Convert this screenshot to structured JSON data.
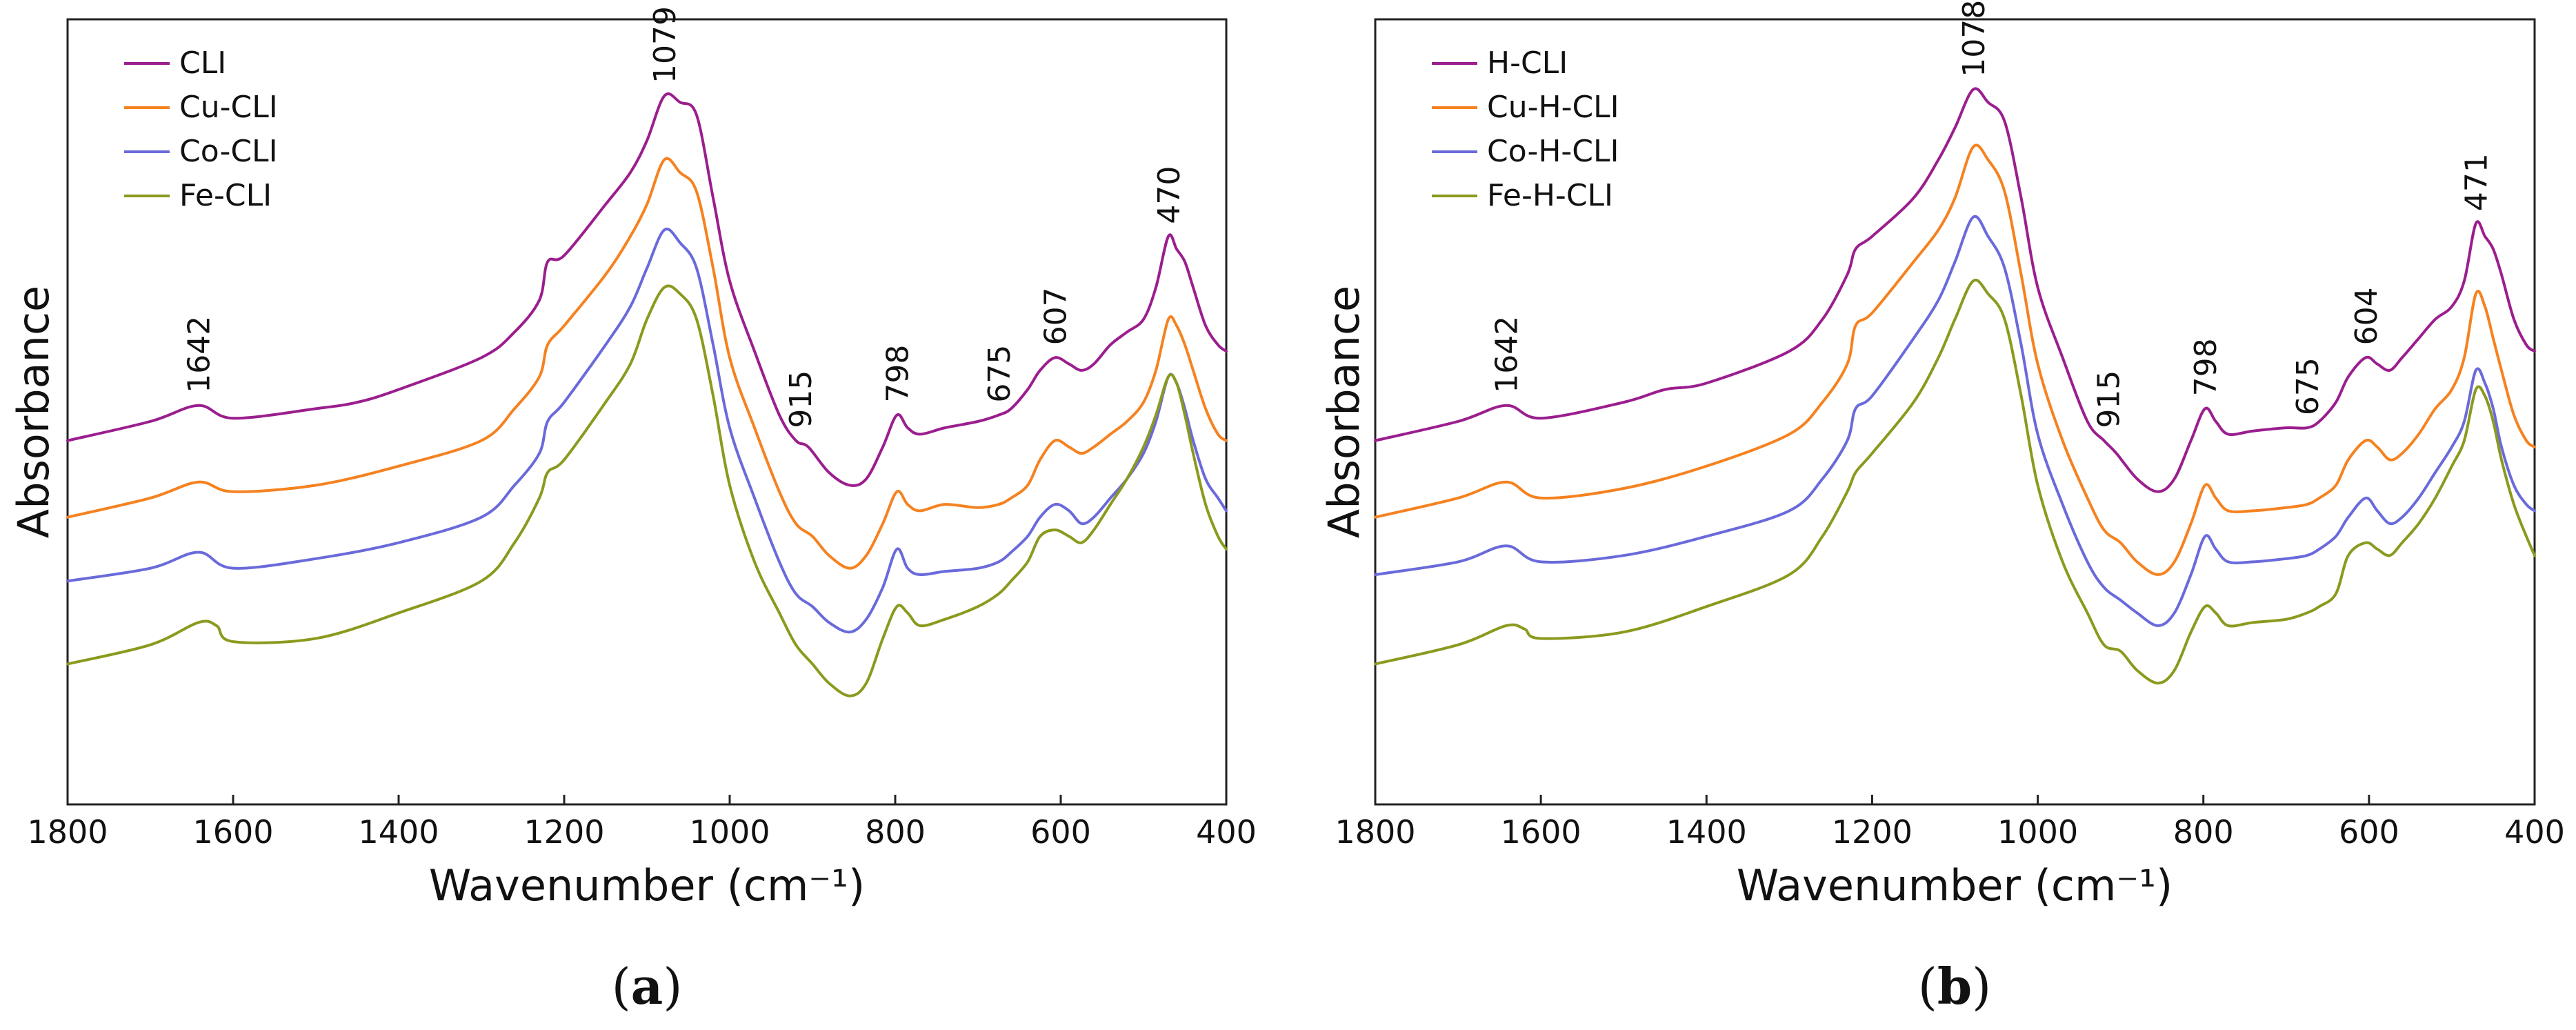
{
  "chart_data": [
    {
      "type": "line",
      "panel_label": "a",
      "xlabel": "Wavenumber (cm⁻¹)",
      "ylabel": "Absorbance",
      "xlim": [
        1800,
        400
      ],
      "ylim": [
        -0.15,
        1.08
      ],
      "x_ticks": [
        1800,
        1600,
        1400,
        1200,
        1000,
        800,
        600,
        400
      ],
      "legend_position": "top-left",
      "series": [
        {
          "name": "CLI",
          "color": "#9B1E8E",
          "x": [
            1800,
            1700,
            1642,
            1600,
            1500,
            1450,
            1400,
            1300,
            1260,
            1230,
            1220,
            1200,
            1150,
            1120,
            1100,
            1079,
            1060,
            1040,
            1020,
            1000,
            970,
            940,
            920,
            905,
            880,
            855,
            835,
            815,
            798,
            785,
            770,
            740,
            700,
            675,
            660,
            640,
            625,
            607,
            590,
            575,
            560,
            540,
            520,
            500,
            485,
            470,
            460,
            450,
            440,
            425,
            410,
            400
          ],
          "y": [
            0.42,
            0.45,
            0.475,
            0.455,
            0.47,
            0.48,
            0.5,
            0.55,
            0.59,
            0.64,
            0.7,
            0.71,
            0.79,
            0.84,
            0.89,
            0.96,
            0.95,
            0.93,
            0.8,
            0.67,
            0.56,
            0.46,
            0.42,
            0.41,
            0.37,
            0.35,
            0.36,
            0.41,
            0.46,
            0.44,
            0.43,
            0.44,
            0.45,
            0.46,
            0.47,
            0.5,
            0.53,
            0.55,
            0.54,
            0.53,
            0.54,
            0.57,
            0.59,
            0.61,
            0.66,
            0.74,
            0.72,
            0.7,
            0.66,
            0.6,
            0.57,
            0.56
          ]
        },
        {
          "name": "Cu-CLI",
          "color": "#F58220",
          "x": [
            1800,
            1700,
            1642,
            1600,
            1500,
            1400,
            1300,
            1260,
            1230,
            1220,
            1200,
            1150,
            1120,
            1100,
            1079,
            1060,
            1040,
            1020,
            1000,
            970,
            940,
            920,
            900,
            880,
            855,
            835,
            815,
            798,
            785,
            770,
            740,
            700,
            675,
            660,
            640,
            625,
            607,
            590,
            575,
            560,
            540,
            520,
            500,
            485,
            470,
            460,
            450,
            440,
            425,
            410,
            400
          ],
          "y": [
            0.3,
            0.33,
            0.355,
            0.34,
            0.35,
            0.38,
            0.42,
            0.47,
            0.52,
            0.57,
            0.6,
            0.68,
            0.74,
            0.79,
            0.86,
            0.84,
            0.81,
            0.69,
            0.55,
            0.44,
            0.34,
            0.29,
            0.27,
            0.24,
            0.22,
            0.24,
            0.29,
            0.34,
            0.32,
            0.31,
            0.32,
            0.315,
            0.32,
            0.33,
            0.35,
            0.39,
            0.42,
            0.41,
            0.4,
            0.41,
            0.43,
            0.45,
            0.48,
            0.53,
            0.61,
            0.6,
            0.57,
            0.53,
            0.47,
            0.43,
            0.42
          ]
        },
        {
          "name": "Co-CLI",
          "color": "#6A6ADB",
          "x": [
            1800,
            1700,
            1642,
            1600,
            1500,
            1400,
            1300,
            1260,
            1230,
            1220,
            1200,
            1150,
            1120,
            1100,
            1079,
            1060,
            1040,
            1020,
            1000,
            970,
            940,
            920,
            900,
            880,
            855,
            835,
            815,
            798,
            785,
            770,
            740,
            700,
            675,
            660,
            640,
            625,
            607,
            590,
            575,
            560,
            540,
            520,
            500,
            485,
            470,
            460,
            450,
            440,
            425,
            410,
            400
          ],
          "y": [
            0.2,
            0.22,
            0.245,
            0.22,
            0.235,
            0.26,
            0.3,
            0.35,
            0.4,
            0.45,
            0.48,
            0.57,
            0.63,
            0.69,
            0.75,
            0.73,
            0.69,
            0.57,
            0.44,
            0.33,
            0.23,
            0.18,
            0.16,
            0.135,
            0.12,
            0.14,
            0.19,
            0.25,
            0.22,
            0.21,
            0.215,
            0.22,
            0.23,
            0.245,
            0.27,
            0.3,
            0.32,
            0.31,
            0.29,
            0.3,
            0.33,
            0.36,
            0.4,
            0.45,
            0.52,
            0.51,
            0.47,
            0.42,
            0.36,
            0.33,
            0.31
          ]
        },
        {
          "name": "Fe-CLI",
          "color": "#8B9A1E",
          "x": [
            1800,
            1700,
            1642,
            1620,
            1600,
            1500,
            1400,
            1300,
            1260,
            1230,
            1220,
            1200,
            1150,
            1120,
            1100,
            1079,
            1060,
            1040,
            1020,
            1000,
            970,
            940,
            920,
            900,
            880,
            855,
            835,
            815,
            798,
            785,
            770,
            740,
            700,
            675,
            660,
            640,
            625,
            607,
            590,
            575,
            560,
            540,
            520,
            500,
            485,
            470,
            460,
            450,
            440,
            425,
            410,
            400
          ],
          "y": [
            0.07,
            0.1,
            0.135,
            0.13,
            0.105,
            0.11,
            0.15,
            0.2,
            0.26,
            0.33,
            0.37,
            0.39,
            0.48,
            0.54,
            0.61,
            0.66,
            0.65,
            0.61,
            0.49,
            0.35,
            0.23,
            0.15,
            0.1,
            0.07,
            0.04,
            0.02,
            0.04,
            0.11,
            0.16,
            0.15,
            0.13,
            0.14,
            0.16,
            0.18,
            0.2,
            0.23,
            0.27,
            0.28,
            0.27,
            0.26,
            0.28,
            0.32,
            0.36,
            0.41,
            0.46,
            0.52,
            0.51,
            0.46,
            0.4,
            0.32,
            0.27,
            0.25
          ]
        }
      ],
      "annotations": [
        {
          "text": "1642",
          "x": 1642,
          "y": 0.475
        },
        {
          "text": "1079",
          "x": 1079,
          "y": 0.96
        },
        {
          "text": "915",
          "x": 915,
          "y": 0.42
        },
        {
          "text": "798",
          "x": 798,
          "y": 0.46
        },
        {
          "text": "675",
          "x": 675,
          "y": 0.46
        },
        {
          "text": "607",
          "x": 607,
          "y": 0.55
        },
        {
          "text": "470",
          "x": 470,
          "y": 0.74
        }
      ]
    },
    {
      "type": "line",
      "panel_label": "b",
      "xlabel": "Wavenumber (cm⁻¹)",
      "ylabel": "Absorbance",
      "xlim": [
        1800,
        400
      ],
      "ylim": [
        -0.15,
        1.08
      ],
      "x_ticks": [
        1800,
        1600,
        1400,
        1200,
        1000,
        800,
        600,
        400
      ],
      "legend_position": "top-left",
      "series": [
        {
          "name": "H-CLI",
          "color": "#9B1E8E",
          "x": [
            1800,
            1700,
            1642,
            1600,
            1500,
            1450,
            1400,
            1300,
            1260,
            1230,
            1220,
            1200,
            1150,
            1120,
            1100,
            1078,
            1060,
            1040,
            1020,
            1000,
            970,
            940,
            920,
            905,
            880,
            855,
            835,
            815,
            798,
            785,
            770,
            740,
            700,
            675,
            660,
            640,
            625,
            604,
            590,
            575,
            560,
            540,
            520,
            500,
            485,
            471,
            460,
            450,
            440,
            425,
            410,
            400
          ],
          "y": [
            0.42,
            0.45,
            0.475,
            0.455,
            0.48,
            0.5,
            0.51,
            0.56,
            0.61,
            0.68,
            0.72,
            0.74,
            0.8,
            0.86,
            0.91,
            0.97,
            0.95,
            0.92,
            0.8,
            0.66,
            0.55,
            0.45,
            0.42,
            0.4,
            0.36,
            0.34,
            0.36,
            0.42,
            0.47,
            0.45,
            0.43,
            0.435,
            0.44,
            0.44,
            0.45,
            0.48,
            0.52,
            0.55,
            0.54,
            0.53,
            0.55,
            0.58,
            0.61,
            0.63,
            0.67,
            0.76,
            0.74,
            0.72,
            0.68,
            0.61,
            0.57,
            0.56
          ]
        },
        {
          "name": "Cu-H-CLI",
          "color": "#F58220",
          "x": [
            1800,
            1700,
            1642,
            1600,
            1500,
            1400,
            1300,
            1260,
            1230,
            1220,
            1200,
            1150,
            1120,
            1100,
            1078,
            1060,
            1040,
            1020,
            1000,
            970,
            940,
            920,
            900,
            880,
            855,
            835,
            815,
            798,
            785,
            770,
            740,
            700,
            675,
            660,
            640,
            625,
            604,
            590,
            575,
            560,
            540,
            520,
            500,
            485,
            471,
            460,
            450,
            440,
            425,
            410,
            400
          ],
          "y": [
            0.3,
            0.33,
            0.355,
            0.33,
            0.345,
            0.38,
            0.43,
            0.48,
            0.54,
            0.6,
            0.62,
            0.7,
            0.75,
            0.8,
            0.88,
            0.86,
            0.81,
            0.68,
            0.54,
            0.42,
            0.33,
            0.28,
            0.26,
            0.23,
            0.21,
            0.23,
            0.29,
            0.35,
            0.33,
            0.31,
            0.31,
            0.315,
            0.32,
            0.33,
            0.35,
            0.39,
            0.42,
            0.41,
            0.39,
            0.4,
            0.43,
            0.47,
            0.5,
            0.55,
            0.65,
            0.63,
            0.58,
            0.53,
            0.46,
            0.42,
            0.41
          ]
        },
        {
          "name": "Co-H-CLI",
          "color": "#6A6ADB",
          "x": [
            1800,
            1700,
            1642,
            1600,
            1500,
            1400,
            1300,
            1260,
            1230,
            1220,
            1200,
            1150,
            1120,
            1100,
            1078,
            1060,
            1040,
            1020,
            1000,
            970,
            940,
            920,
            900,
            880,
            855,
            835,
            815,
            798,
            785,
            770,
            740,
            700,
            675,
            660,
            640,
            625,
            604,
            590,
            575,
            560,
            540,
            520,
            500,
            485,
            471,
            460,
            450,
            440,
            425,
            410,
            400
          ],
          "y": [
            0.21,
            0.23,
            0.255,
            0.23,
            0.24,
            0.27,
            0.31,
            0.36,
            0.42,
            0.47,
            0.49,
            0.58,
            0.64,
            0.7,
            0.77,
            0.74,
            0.69,
            0.57,
            0.43,
            0.32,
            0.23,
            0.19,
            0.17,
            0.15,
            0.13,
            0.15,
            0.21,
            0.27,
            0.25,
            0.23,
            0.23,
            0.235,
            0.24,
            0.25,
            0.27,
            0.3,
            0.33,
            0.31,
            0.29,
            0.3,
            0.33,
            0.37,
            0.41,
            0.45,
            0.53,
            0.51,
            0.47,
            0.41,
            0.35,
            0.32,
            0.31
          ]
        },
        {
          "name": "Fe-H-CLI",
          "color": "#8B9A1E",
          "x": [
            1800,
            1700,
            1642,
            1620,
            1600,
            1500,
            1400,
            1300,
            1260,
            1230,
            1220,
            1200,
            1150,
            1120,
            1100,
            1078,
            1060,
            1040,
            1020,
            1000,
            970,
            940,
            920,
            900,
            880,
            855,
            835,
            815,
            798,
            785,
            770,
            740,
            700,
            675,
            660,
            640,
            625,
            604,
            590,
            575,
            560,
            540,
            520,
            500,
            485,
            471,
            460,
            450,
            440,
            425,
            410,
            400
          ],
          "y": [
            0.07,
            0.1,
            0.13,
            0.125,
            0.11,
            0.12,
            0.16,
            0.21,
            0.27,
            0.34,
            0.37,
            0.4,
            0.48,
            0.55,
            0.61,
            0.67,
            0.65,
            0.61,
            0.49,
            0.35,
            0.23,
            0.15,
            0.1,
            0.09,
            0.06,
            0.04,
            0.06,
            0.12,
            0.16,
            0.15,
            0.13,
            0.135,
            0.14,
            0.15,
            0.16,
            0.18,
            0.24,
            0.26,
            0.25,
            0.24,
            0.26,
            0.29,
            0.33,
            0.38,
            0.42,
            0.5,
            0.49,
            0.45,
            0.39,
            0.32,
            0.27,
            0.24
          ]
        }
      ],
      "annotations": [
        {
          "text": "1642",
          "x": 1642,
          "y": 0.475
        },
        {
          "text": "1078",
          "x": 1078,
          "y": 0.97
        },
        {
          "text": "915",
          "x": 915,
          "y": 0.42
        },
        {
          "text": "798",
          "x": 798,
          "y": 0.47
        },
        {
          "text": "675",
          "x": 675,
          "y": 0.44
        },
        {
          "text": "604",
          "x": 604,
          "y": 0.55
        },
        {
          "text": "471",
          "x": 471,
          "y": 0.76
        }
      ]
    }
  ]
}
